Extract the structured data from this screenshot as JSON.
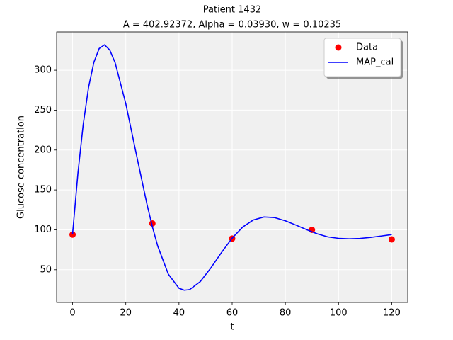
{
  "chart_data": {
    "type": "line",
    "title": "Patient 1432",
    "subtitle": "A = 402.92372, Alpha = 0.03930, w = 0.10235",
    "xlabel": "t",
    "ylabel": "Glucose concentration",
    "xlim": [
      -6,
      126
    ],
    "xticks": [
      0,
      20,
      40,
      60,
      80,
      100,
      120
    ],
    "ylim": [
      9,
      348
    ],
    "yticks": [
      50,
      100,
      150,
      200,
      250,
      300
    ],
    "grid": true,
    "legend": "upper-right",
    "series": [
      {
        "name": "Data",
        "color": "#ff0000",
        "style": "markers",
        "x": [
          0,
          30,
          60,
          90,
          120
        ],
        "values": [
          94,
          108,
          89,
          100,
          88
        ]
      },
      {
        "name": "MAP_cal",
        "color": "#0000ff",
        "style": "line",
        "x": [
          0,
          2,
          4,
          6,
          8,
          10,
          12,
          14,
          16,
          20,
          24,
          28,
          30,
          32,
          36,
          40,
          42,
          44,
          48,
          52,
          56,
          60,
          64,
          68,
          72,
          76,
          80,
          84,
          88,
          92,
          96,
          100,
          104,
          108,
          112,
          116,
          120
        ],
        "values": [
          95,
          170.7,
          232.1,
          278.4,
          309.9,
          327.2,
          331.8,
          325.2,
          309.3,
          258.2,
          194.2,
          131.5,
          103.8,
          79.7,
          44.4,
          26.8,
          24.3,
          25.1,
          35.1,
          52.3,
          71.6,
          89.6,
          103.6,
          112.4,
          116.1,
          115.3,
          111.3,
          105.9,
          100.2,
          95,
          91.1,
          89.3,
          88.7,
          89.2,
          90.5,
          92.2,
          94
        ]
      }
    ]
  }
}
